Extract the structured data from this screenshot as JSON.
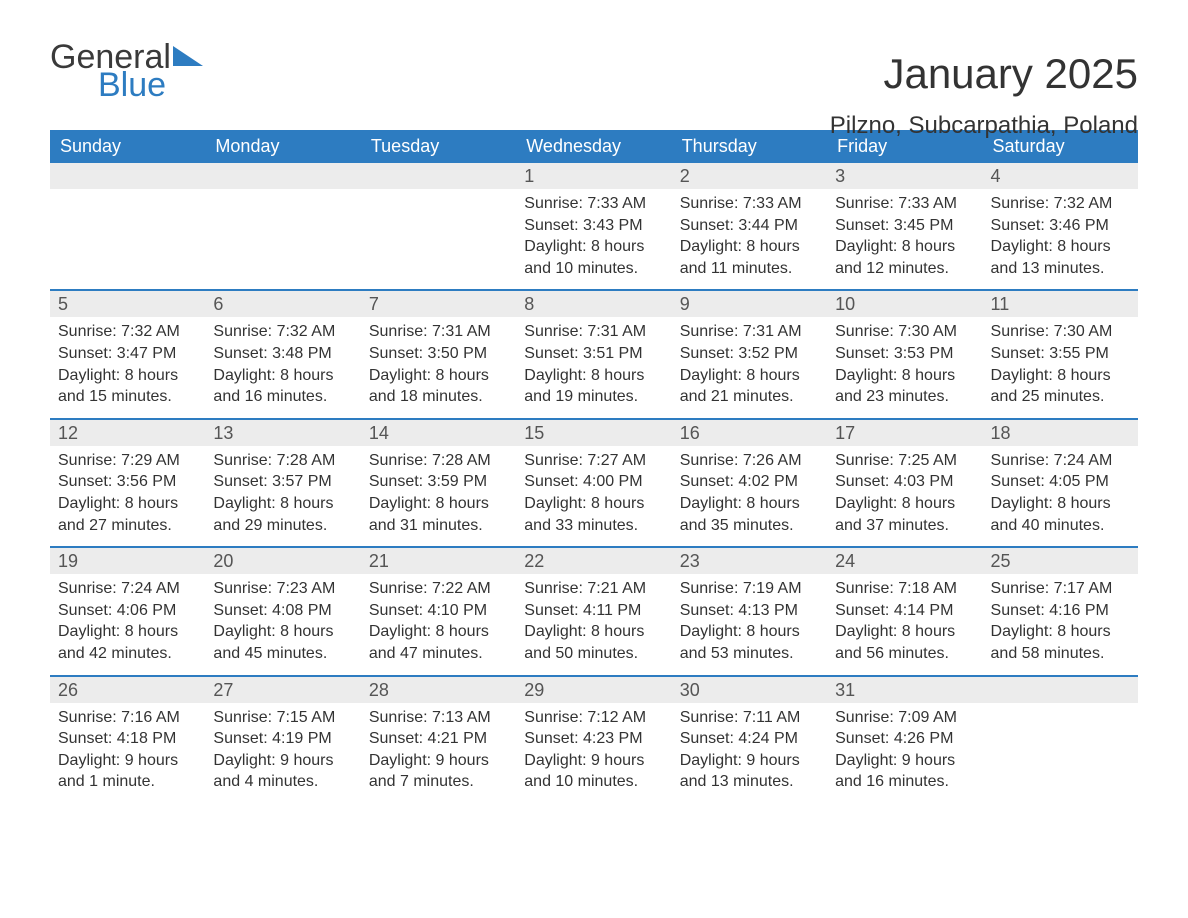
{
  "logo": {
    "word1": "General",
    "word2": "Blue",
    "color_general": "#3a3a3a",
    "color_blue": "#2d7cc1"
  },
  "header": {
    "month_title": "January 2025",
    "location": "Pilzno, Subcarpathia, Poland"
  },
  "colors": {
    "header_bg": "#2d7cc1",
    "header_text": "#ffffff",
    "daynum_bg": "#ececec",
    "week_border": "#2d7cc1",
    "body_text": "#333333"
  },
  "typography": {
    "title_size_pt": 32,
    "location_size_pt": 18,
    "dayhead_size_pt": 14,
    "body_size_pt": 12
  },
  "day_headers": [
    "Sunday",
    "Monday",
    "Tuesday",
    "Wednesday",
    "Thursday",
    "Friday",
    "Saturday"
  ],
  "weeks": [
    [
      {
        "num": "",
        "sunrise": "",
        "sunset": "",
        "daylight1": "",
        "daylight2": "",
        "empty": true
      },
      {
        "num": "",
        "sunrise": "",
        "sunset": "",
        "daylight1": "",
        "daylight2": "",
        "empty": true
      },
      {
        "num": "",
        "sunrise": "",
        "sunset": "",
        "daylight1": "",
        "daylight2": "",
        "empty": true
      },
      {
        "num": "1",
        "sunrise": "Sunrise: 7:33 AM",
        "sunset": "Sunset: 3:43 PM",
        "daylight1": "Daylight: 8 hours",
        "daylight2": "and 10 minutes."
      },
      {
        "num": "2",
        "sunrise": "Sunrise: 7:33 AM",
        "sunset": "Sunset: 3:44 PM",
        "daylight1": "Daylight: 8 hours",
        "daylight2": "and 11 minutes."
      },
      {
        "num": "3",
        "sunrise": "Sunrise: 7:33 AM",
        "sunset": "Sunset: 3:45 PM",
        "daylight1": "Daylight: 8 hours",
        "daylight2": "and 12 minutes."
      },
      {
        "num": "4",
        "sunrise": "Sunrise: 7:32 AM",
        "sunset": "Sunset: 3:46 PM",
        "daylight1": "Daylight: 8 hours",
        "daylight2": "and 13 minutes."
      }
    ],
    [
      {
        "num": "5",
        "sunrise": "Sunrise: 7:32 AM",
        "sunset": "Sunset: 3:47 PM",
        "daylight1": "Daylight: 8 hours",
        "daylight2": "and 15 minutes."
      },
      {
        "num": "6",
        "sunrise": "Sunrise: 7:32 AM",
        "sunset": "Sunset: 3:48 PM",
        "daylight1": "Daylight: 8 hours",
        "daylight2": "and 16 minutes."
      },
      {
        "num": "7",
        "sunrise": "Sunrise: 7:31 AM",
        "sunset": "Sunset: 3:50 PM",
        "daylight1": "Daylight: 8 hours",
        "daylight2": "and 18 minutes."
      },
      {
        "num": "8",
        "sunrise": "Sunrise: 7:31 AM",
        "sunset": "Sunset: 3:51 PM",
        "daylight1": "Daylight: 8 hours",
        "daylight2": "and 19 minutes."
      },
      {
        "num": "9",
        "sunrise": "Sunrise: 7:31 AM",
        "sunset": "Sunset: 3:52 PM",
        "daylight1": "Daylight: 8 hours",
        "daylight2": "and 21 minutes."
      },
      {
        "num": "10",
        "sunrise": "Sunrise: 7:30 AM",
        "sunset": "Sunset: 3:53 PM",
        "daylight1": "Daylight: 8 hours",
        "daylight2": "and 23 minutes."
      },
      {
        "num": "11",
        "sunrise": "Sunrise: 7:30 AM",
        "sunset": "Sunset: 3:55 PM",
        "daylight1": "Daylight: 8 hours",
        "daylight2": "and 25 minutes."
      }
    ],
    [
      {
        "num": "12",
        "sunrise": "Sunrise: 7:29 AM",
        "sunset": "Sunset: 3:56 PM",
        "daylight1": "Daylight: 8 hours",
        "daylight2": "and 27 minutes."
      },
      {
        "num": "13",
        "sunrise": "Sunrise: 7:28 AM",
        "sunset": "Sunset: 3:57 PM",
        "daylight1": "Daylight: 8 hours",
        "daylight2": "and 29 minutes."
      },
      {
        "num": "14",
        "sunrise": "Sunrise: 7:28 AM",
        "sunset": "Sunset: 3:59 PM",
        "daylight1": "Daylight: 8 hours",
        "daylight2": "and 31 minutes."
      },
      {
        "num": "15",
        "sunrise": "Sunrise: 7:27 AM",
        "sunset": "Sunset: 4:00 PM",
        "daylight1": "Daylight: 8 hours",
        "daylight2": "and 33 minutes."
      },
      {
        "num": "16",
        "sunrise": "Sunrise: 7:26 AM",
        "sunset": "Sunset: 4:02 PM",
        "daylight1": "Daylight: 8 hours",
        "daylight2": "and 35 minutes."
      },
      {
        "num": "17",
        "sunrise": "Sunrise: 7:25 AM",
        "sunset": "Sunset: 4:03 PM",
        "daylight1": "Daylight: 8 hours",
        "daylight2": "and 37 minutes."
      },
      {
        "num": "18",
        "sunrise": "Sunrise: 7:24 AM",
        "sunset": "Sunset: 4:05 PM",
        "daylight1": "Daylight: 8 hours",
        "daylight2": "and 40 minutes."
      }
    ],
    [
      {
        "num": "19",
        "sunrise": "Sunrise: 7:24 AM",
        "sunset": "Sunset: 4:06 PM",
        "daylight1": "Daylight: 8 hours",
        "daylight2": "and 42 minutes."
      },
      {
        "num": "20",
        "sunrise": "Sunrise: 7:23 AM",
        "sunset": "Sunset: 4:08 PM",
        "daylight1": "Daylight: 8 hours",
        "daylight2": "and 45 minutes."
      },
      {
        "num": "21",
        "sunrise": "Sunrise: 7:22 AM",
        "sunset": "Sunset: 4:10 PM",
        "daylight1": "Daylight: 8 hours",
        "daylight2": "and 47 minutes."
      },
      {
        "num": "22",
        "sunrise": "Sunrise: 7:21 AM",
        "sunset": "Sunset: 4:11 PM",
        "daylight1": "Daylight: 8 hours",
        "daylight2": "and 50 minutes."
      },
      {
        "num": "23",
        "sunrise": "Sunrise: 7:19 AM",
        "sunset": "Sunset: 4:13 PM",
        "daylight1": "Daylight: 8 hours",
        "daylight2": "and 53 minutes."
      },
      {
        "num": "24",
        "sunrise": "Sunrise: 7:18 AM",
        "sunset": "Sunset: 4:14 PM",
        "daylight1": "Daylight: 8 hours",
        "daylight2": "and 56 minutes."
      },
      {
        "num": "25",
        "sunrise": "Sunrise: 7:17 AM",
        "sunset": "Sunset: 4:16 PM",
        "daylight1": "Daylight: 8 hours",
        "daylight2": "and 58 minutes."
      }
    ],
    [
      {
        "num": "26",
        "sunrise": "Sunrise: 7:16 AM",
        "sunset": "Sunset: 4:18 PM",
        "daylight1": "Daylight: 9 hours",
        "daylight2": "and 1 minute."
      },
      {
        "num": "27",
        "sunrise": "Sunrise: 7:15 AM",
        "sunset": "Sunset: 4:19 PM",
        "daylight1": "Daylight: 9 hours",
        "daylight2": "and 4 minutes."
      },
      {
        "num": "28",
        "sunrise": "Sunrise: 7:13 AM",
        "sunset": "Sunset: 4:21 PM",
        "daylight1": "Daylight: 9 hours",
        "daylight2": "and 7 minutes."
      },
      {
        "num": "29",
        "sunrise": "Sunrise: 7:12 AM",
        "sunset": "Sunset: 4:23 PM",
        "daylight1": "Daylight: 9 hours",
        "daylight2": "and 10 minutes."
      },
      {
        "num": "30",
        "sunrise": "Sunrise: 7:11 AM",
        "sunset": "Sunset: 4:24 PM",
        "daylight1": "Daylight: 9 hours",
        "daylight2": "and 13 minutes."
      },
      {
        "num": "31",
        "sunrise": "Sunrise: 7:09 AM",
        "sunset": "Sunset: 4:26 PM",
        "daylight1": "Daylight: 9 hours",
        "daylight2": "and 16 minutes."
      },
      {
        "num": "",
        "sunrise": "",
        "sunset": "",
        "daylight1": "",
        "daylight2": "",
        "empty": true
      }
    ]
  ]
}
